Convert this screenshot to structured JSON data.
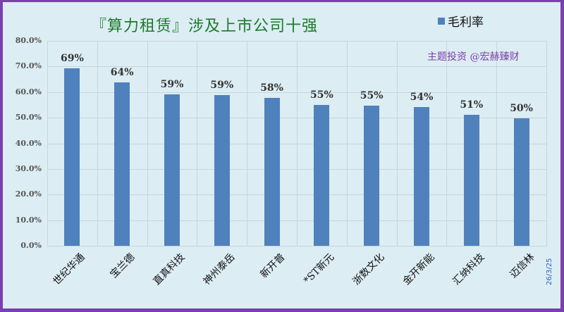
{
  "chart_data": {
    "type": "bar",
    "title": "『算力租赁』涉及上市公司十强",
    "xlabel": "",
    "ylabel": "",
    "ylim": [
      0,
      80
    ],
    "yticks": [
      "0.0%",
      "10.0%",
      "20.0%",
      "30.0%",
      "40.0%",
      "50.0%",
      "60.0%",
      "70.0%",
      "80.0%"
    ],
    "grid": true,
    "legend_position": "top-right",
    "categories": [
      "世纪华通",
      "宝兰德",
      "直真科技",
      "神州泰岳",
      "新开普",
      "*ST新元",
      "浙数文化",
      "金开新能",
      "汇纳科技",
      "迈信林"
    ],
    "series": [
      {
        "name": "毛利率",
        "color": "#4f81bd",
        "values": [
          69.2,
          63.7,
          59.1,
          58.8,
          57.6,
          55.0,
          54.6,
          54.2,
          51.2,
          49.7
        ],
        "data_labels": [
          "69%",
          "64%",
          "59%",
          "59%",
          "58%",
          "55%",
          "55%",
          "54%",
          "51%",
          "50%"
        ]
      }
    ],
    "annotations": [
      "主题投资 @宏赫臻财",
      "26/3/25"
    ]
  },
  "header": {
    "title": "『算力租赁』涉及上市公司十强"
  },
  "legend": {
    "label": "毛利率",
    "color": "#4f81bd"
  },
  "watermark": "主题投资 @宏赫臻财",
  "date": "26/3/25"
}
